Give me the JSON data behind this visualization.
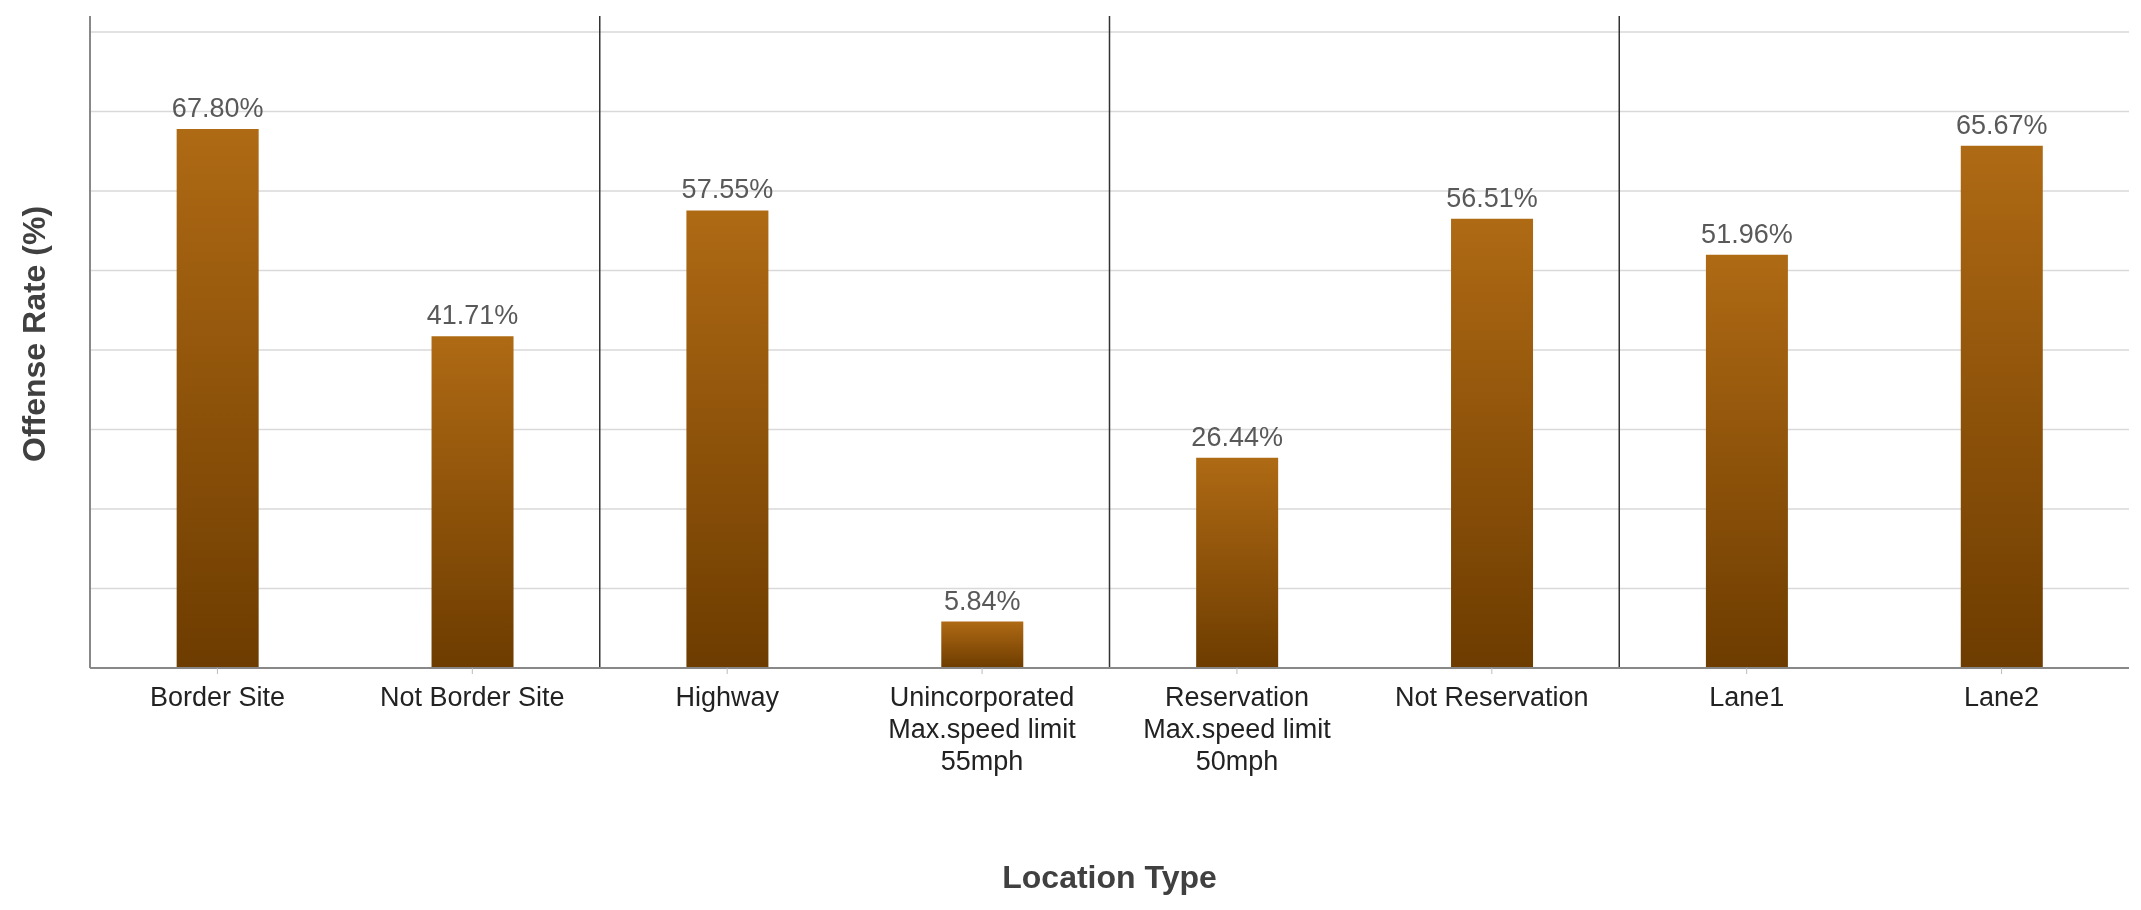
{
  "chart_data": {
    "type": "bar",
    "xlabel": "Location Type",
    "ylabel": "Offense Rate (%)",
    "categories": [
      "Border Site",
      "Not Border Site",
      "Highway",
      "Unincorporated\nMax.speed limit\n55mph",
      "Reservation\nMax.speed limit\n50mph",
      "Not Reservation",
      "Lane1",
      "Lane2"
    ],
    "values": [
      67.8,
      41.71,
      57.55,
      5.84,
      26.44,
      56.51,
      51.96,
      65.67
    ],
    "value_labels": [
      "67.80%",
      "41.71%",
      "57.55%",
      "5.84%",
      "26.44%",
      "56.51%",
      "51.96%",
      "65.67%"
    ],
    "color": "#a85d00",
    "ylim": [
      0,
      82
    ],
    "yticks": [
      {
        "value": 0,
        "label": null
      },
      {
        "value": 10,
        "label": null
      },
      {
        "value": 20,
        "label": null
      },
      {
        "value": 30,
        "label": null
      },
      {
        "value": 40,
        "label": null
      },
      {
        "value": 50,
        "label": null
      },
      {
        "value": 60,
        "label": null
      },
      {
        "value": 70,
        "label": null
      },
      {
        "value": 80,
        "label": null
      }
    ],
    "grid": "y",
    "tick_labels": "x"
  }
}
